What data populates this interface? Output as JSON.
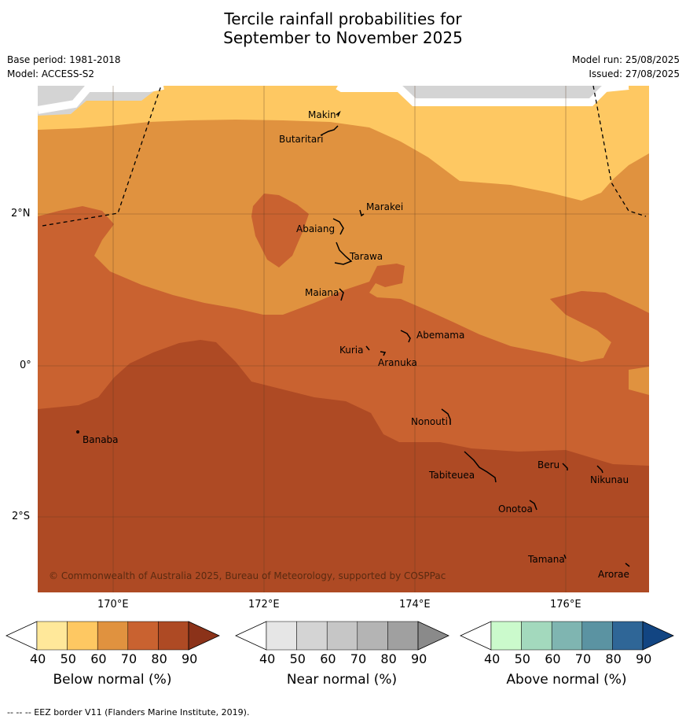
{
  "title_line1": "Tercile rainfall probabilities for",
  "title_line2": "September to November 2025",
  "base_period": "Base period: 1981-2018",
  "model": "Model: ACCESS-S2",
  "model_run": "Model run: 25/08/2025",
  "issued": "Issued: 27/08/2025",
  "lat_labels": [
    "2°N",
    "0°",
    "2°S"
  ],
  "lon_labels": [
    "170°E",
    "172°E",
    "174°E",
    "176°E"
  ],
  "copyright": "© Commonwealth of Australia 2025, Bureau of Meteorology, supported by COSPPac",
  "islands": [
    "Makin",
    "Butaritari",
    "Marakei",
    "Abaiang",
    "Tarawa",
    "Maiana",
    "Abemama",
    "Kuria",
    "Aranuka",
    "Nonouti",
    "Banaba",
    "Tabiteuea",
    "Beru",
    "Nikunau",
    "Onotoa",
    "Tamana",
    "Arorae"
  ],
  "colorbars": [
    {
      "title": "Below normal (%)",
      "ticks": [
        "40",
        "50",
        "60",
        "70",
        "80",
        "90"
      ],
      "colors": [
        "#ffffff",
        "#ffe89a",
        "#fec862",
        "#e0923f",
        "#c96230",
        "#ae4a24",
        "#8b3219"
      ]
    },
    {
      "title": "Near normal (%)",
      "ticks": [
        "40",
        "50",
        "60",
        "70",
        "80",
        "90"
      ],
      "colors": [
        "#ffffff",
        "#e6e6e6",
        "#d4d4d4",
        "#c6c6c6",
        "#b4b4b4",
        "#a0a0a0",
        "#8a8a8a"
      ]
    },
    {
      "title": "Above normal (%)",
      "ticks": [
        "40",
        "50",
        "60",
        "70",
        "80",
        "90"
      ],
      "colors": [
        "#ffffff",
        "#cbfacc",
        "#a3d9bd",
        "#7fb5b1",
        "#5b93a2",
        "#2f6697",
        "#124582"
      ]
    }
  ],
  "footer": "--  --  -- EEZ border V11 (Flanders Marine Institute, 2019)."
}
